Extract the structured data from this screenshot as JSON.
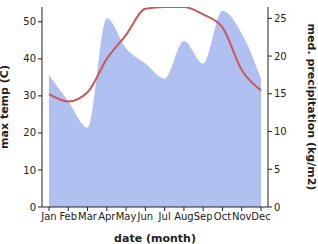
{
  "chart_data": {
    "type": "line",
    "x_label": "date (month)",
    "y_label": "max temp (C)",
    "y2_label": "med. precipitation (kg/m2)",
    "categories": [
      "Jan",
      "Feb",
      "Mar",
      "Apr",
      "May",
      "Jun",
      "Jul",
      "Aug",
      "Sep",
      "Oct",
      "Nov",
      "Dec"
    ],
    "series": [
      {
        "name": "med. precipitation (kg/m2)",
        "type": "area",
        "axis": "y2",
        "color": "#b0c0f0",
        "values": [
          17.5,
          14,
          10.5,
          25,
          21,
          19,
          17,
          22,
          19,
          26,
          23,
          17
        ]
      },
      {
        "name": "max temp (C)",
        "type": "line",
        "color": "#c85858",
        "values": [
          30.5,
          28.5,
          31,
          40,
          46.5,
          53.5,
          54,
          54,
          52,
          48.5,
          37,
          31.5
        ]
      }
    ],
    "ylim": [
      0,
      54
    ],
    "yticks": [
      0,
      10,
      20,
      30,
      40,
      50
    ],
    "y2lim": [
      0,
      26.5
    ],
    "y2ticks": [
      0,
      5,
      10,
      15,
      20,
      25
    ],
    "grid": false
  }
}
